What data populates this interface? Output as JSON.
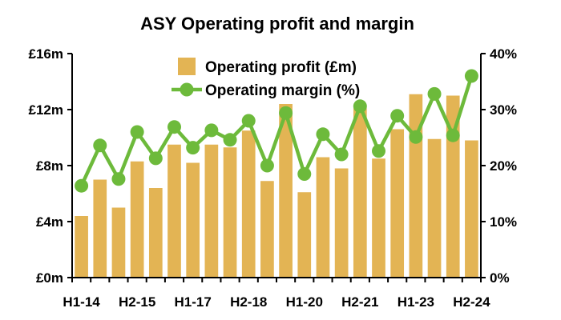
{
  "chart_data": {
    "type": "bar",
    "title": "ASY Operating profit and margin",
    "categories": [
      "H1-14",
      "H2-14",
      "H1-15",
      "H2-15",
      "H1-16",
      "H2-16",
      "H1-17",
      "H2-17",
      "H1-18",
      "H2-18",
      "H1-19",
      "H2-19",
      "H1-20",
      "H2-20",
      "H1-21",
      "H2-21",
      "H1-22",
      "H2-22",
      "H1-23",
      "H2-23",
      "H1-24",
      "H2-24"
    ],
    "x_tick_labels": [
      "H1-14",
      "H2-15",
      "H1-17",
      "H2-18",
      "H1-20",
      "H2-21",
      "H1-23",
      "H2-24"
    ],
    "series": [
      {
        "name": "Operating profit (£m)",
        "type": "bar",
        "axis": "left",
        "color": "#E3B454",
        "values": [
          4.4,
          7.0,
          5.0,
          8.3,
          6.4,
          9.5,
          8.2,
          9.5,
          9.3,
          10.5,
          6.9,
          12.4,
          6.1,
          8.6,
          7.8,
          12.1,
          8.5,
          10.6,
          13.1,
          9.9,
          13.0,
          9.8
        ]
      },
      {
        "name": "Operating margin (%)",
        "type": "line",
        "axis": "right",
        "color": "#6DBA3B",
        "values": [
          16.4,
          23.6,
          17.6,
          26.0,
          21.3,
          26.9,
          23.2,
          26.3,
          24.6,
          28.0,
          20.0,
          29.4,
          18.5,
          25.6,
          22.0,
          30.6,
          22.6,
          28.9,
          25.1,
          32.8,
          25.4,
          36.0
        ]
      }
    ],
    "left_axis": {
      "ticks": [
        "£0m",
        "£4m",
        "£8m",
        "£12m",
        "£16m"
      ],
      "ylim": [
        0,
        16
      ]
    },
    "right_axis": {
      "ticks": [
        "0%",
        "10%",
        "20%",
        "30%",
        "40%"
      ],
      "ylim": [
        0,
        40
      ]
    },
    "grid": false,
    "legend_position": "top-center"
  },
  "colors": {
    "bar": "#E3B454",
    "line": "#6DBA3B"
  }
}
